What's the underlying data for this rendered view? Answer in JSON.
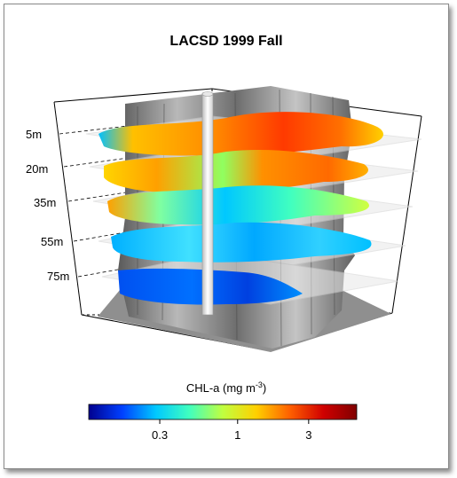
{
  "chart_data": {
    "type": "heatmap",
    "title": "LACSD 1999 Fall",
    "depth_levels": [
      "5m",
      "20m",
      "35m",
      "55m",
      "75m"
    ],
    "level_dominant_color": [
      "orange-red",
      "orange",
      "cyan-green",
      "cyan-blue",
      "blue"
    ],
    "colorbar": {
      "label": "CHL-a (mg m",
      "label_superscript": "-3",
      "label_close": ")",
      "scale": "log",
      "ticks": [
        "0.3",
        "1",
        "3"
      ],
      "colors": [
        "#00008f",
        "#0040ff",
        "#00c8ff",
        "#40ffbf",
        "#c0ff40",
        "#ffd000",
        "#ff6000",
        "#d00000",
        "#800000"
      ]
    },
    "grid": true
  }
}
